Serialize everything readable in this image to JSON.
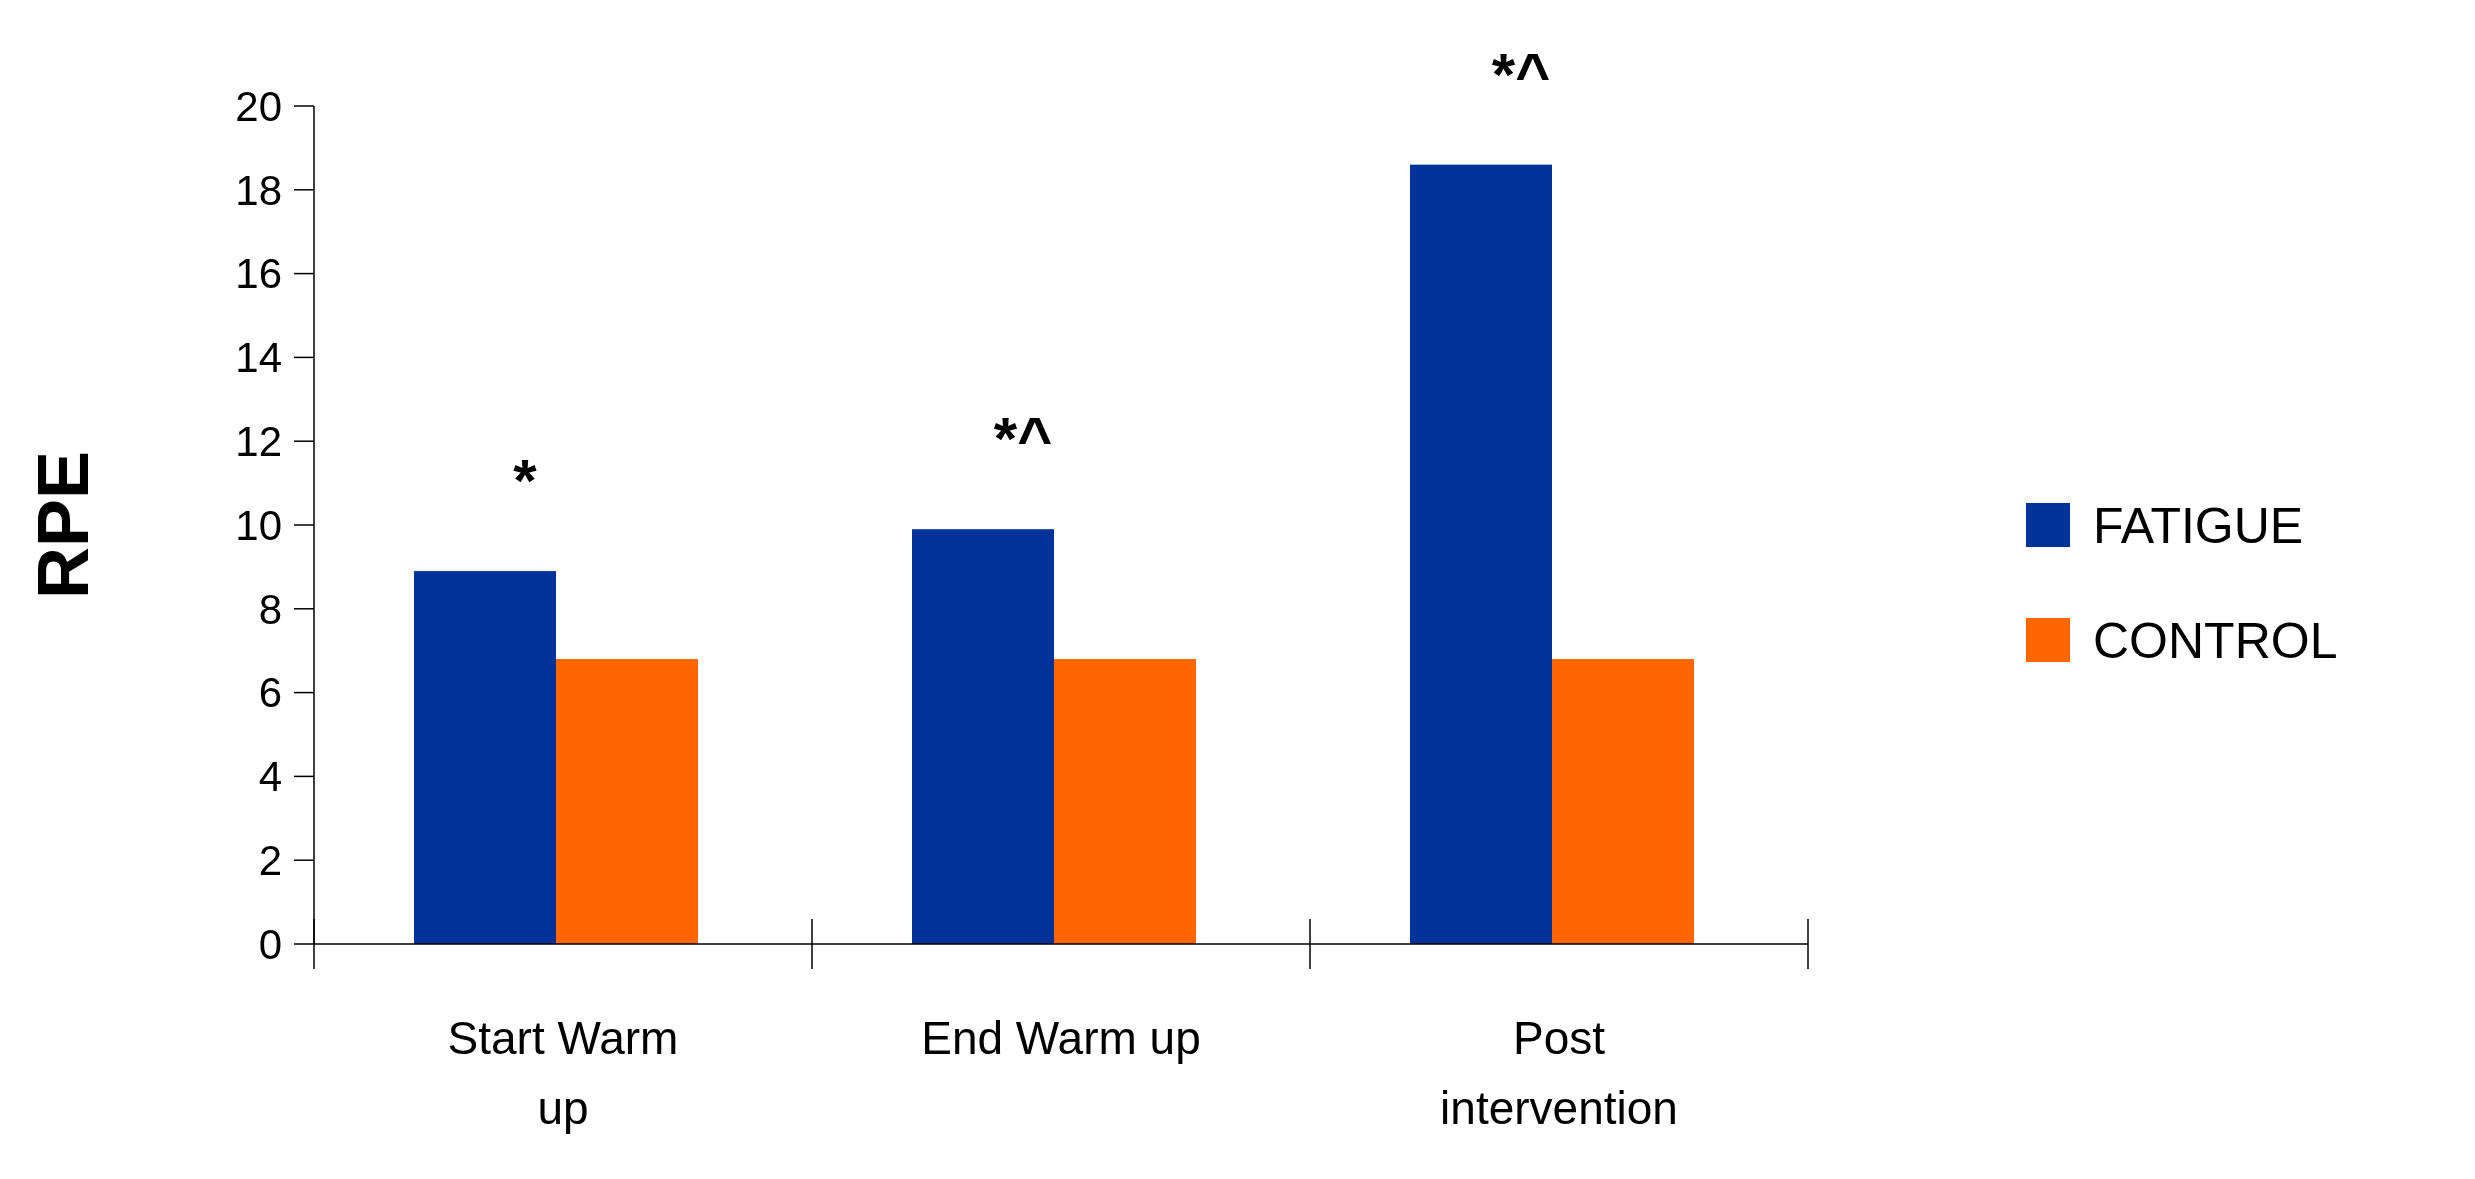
{
  "chart_data": {
    "type": "bar",
    "ylabel": "RPE",
    "categories": [
      "Start Warm up",
      "End Warm up",
      "Post intervention"
    ],
    "series": [
      {
        "name": "FATIGUE",
        "color": "#003399",
        "values": [
          8.9,
          9.9,
          18.6
        ]
      },
      {
        "name": "CONTROL",
        "color": "#ff6600",
        "values": [
          6.8,
          6.8,
          6.8
        ]
      }
    ],
    "ylim": [
      0,
      20
    ],
    "yticks": [
      0,
      2,
      4,
      6,
      8,
      10,
      12,
      14,
      16,
      18,
      20
    ],
    "grid": false,
    "legend": "right",
    "annotations": [
      "*",
      "*^",
      "*^"
    ]
  }
}
